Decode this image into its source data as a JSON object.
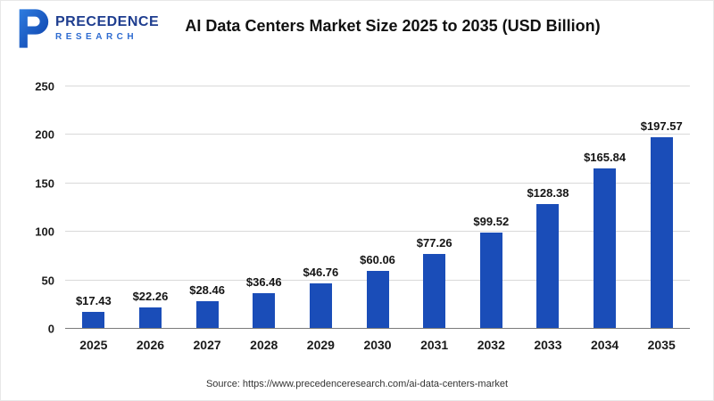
{
  "header": {
    "title": "AI Data Centers Market Size 2025 to 2035 (USD Billion)",
    "logo": {
      "line1": "PRECEDENCE",
      "line2": "RESEARCH"
    }
  },
  "chart_data": {
    "type": "bar",
    "title": "AI Data Centers Market Size 2025 to 2035 (USD Billion)",
    "categories": [
      "2025",
      "2026",
      "2027",
      "2028",
      "2029",
      "2030",
      "2031",
      "2032",
      "2033",
      "2034",
      "2035"
    ],
    "values": [
      17.43,
      22.26,
      28.46,
      36.46,
      46.76,
      60.06,
      77.26,
      99.52,
      128.38,
      165.84,
      197.57
    ],
    "labels": [
      "$17.43",
      "$22.26",
      "$28.46",
      "$36.46",
      "$46.76",
      "$60.06",
      "$77.26",
      "$99.52",
      "$128.38",
      "$165.84",
      "$197.57"
    ],
    "xlabel": "",
    "ylabel": "",
    "ylim": [
      0,
      250
    ],
    "yticks": [
      0,
      50,
      100,
      150,
      200,
      250
    ],
    "grid": true,
    "legend": "none",
    "bar_color": "#1a4db8"
  },
  "footer": {
    "source": "Source: https://www.precedenceresearch.com/ai-data-centers-market"
  }
}
